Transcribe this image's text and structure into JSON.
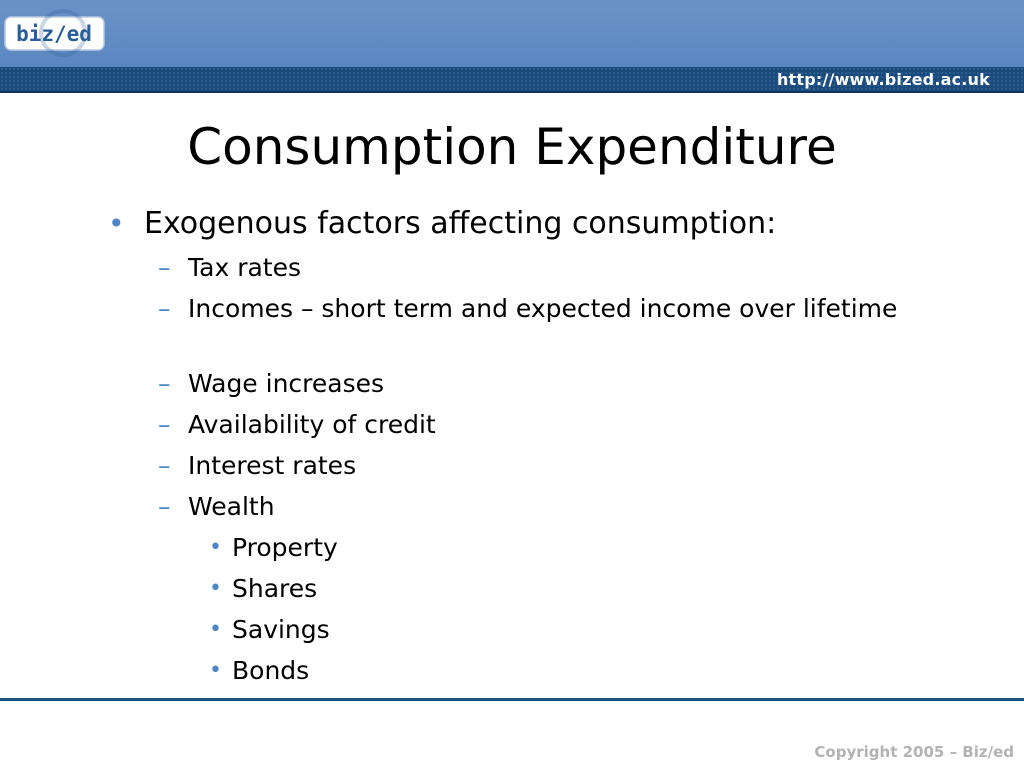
{
  "header": {
    "logo_text": "biz/ed",
    "url": "http://www.bized.ac.uk"
  },
  "slide": {
    "title": "Consumption Expenditure",
    "bullet": "Exogenous factors affecting consumption:",
    "sub_items": [
      "Tax rates",
      "Incomes – short term and expected income over lifetime",
      "Wage increases",
      "Availability of credit",
      "Interest rates",
      "Wealth"
    ],
    "wealth_items": [
      "Property",
      "Shares",
      "Savings",
      "Bonds"
    ]
  },
  "footer": {
    "copyright": "Copyright 2005 – Biz/ed"
  },
  "colors": {
    "header": "#5a86bf",
    "url_bar": "#1b4a7c",
    "bullet": "#4f86c6",
    "copyright": "#b3b3b3"
  }
}
